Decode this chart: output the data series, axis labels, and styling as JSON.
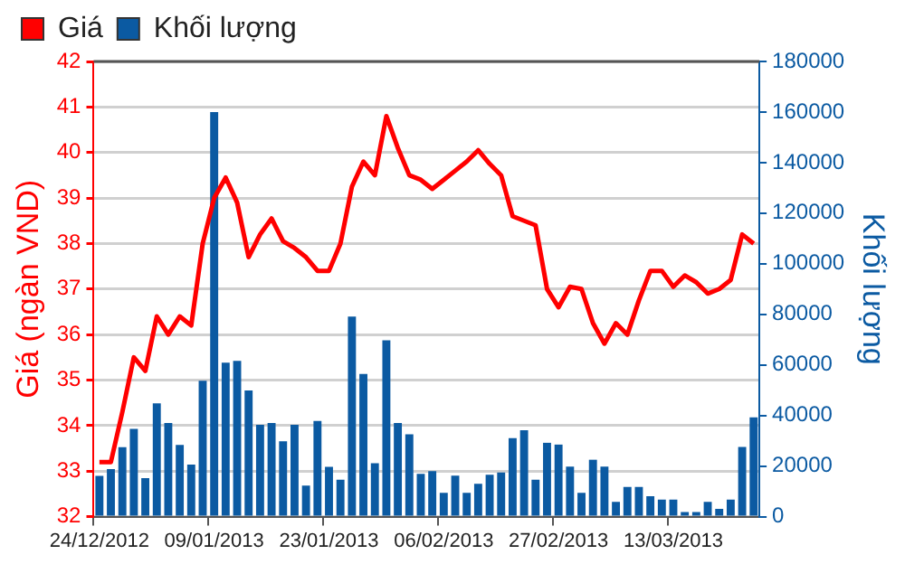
{
  "chart_data": {
    "type": "bar",
    "categories": [
      "24/12/2012",
      null,
      null,
      null,
      null,
      null,
      null,
      null,
      null,
      null,
      "09/01/2013",
      null,
      null,
      null,
      null,
      null,
      null,
      null,
      null,
      null,
      "23/01/2013",
      null,
      null,
      null,
      null,
      null,
      null,
      null,
      null,
      null,
      "06/02/2013",
      null,
      null,
      null,
      null,
      null,
      null,
      null,
      null,
      null,
      "27/02/2013",
      null,
      null,
      null,
      null,
      null,
      null,
      null,
      null,
      null,
      "13/03/2013",
      null,
      null,
      null,
      null,
      null,
      null,
      null
    ],
    "series": [
      {
        "name": "Giá",
        "type": "line",
        "color": "#ff0000",
        "values": [
          33.2,
          33.2,
          34.3,
          35.5,
          35.2,
          36.4,
          36.0,
          36.4,
          36.2,
          38.0,
          39.0,
          39.45,
          38.9,
          37.7,
          38.2,
          38.55,
          38.05,
          37.9,
          37.7,
          37.4,
          37.4,
          38.0,
          39.25,
          39.8,
          39.5,
          40.8,
          40.1,
          39.5,
          39.4,
          39.2,
          39.4,
          39.6,
          39.8,
          40.05,
          39.75,
          39.5,
          38.6,
          38.5,
          38.4,
          37.0,
          36.6,
          37.05,
          37.0,
          36.25,
          35.8,
          36.25,
          36.0,
          36.75,
          37.4,
          37.4,
          37.05,
          37.3,
          37.15,
          36.9,
          37.0,
          37.2,
          38.2,
          38.0
        ]
      },
      {
        "name": "Khối lượng",
        "axis": "y2",
        "color": "#0b5aa2",
        "values": [
          16100,
          18800,
          27500,
          34700,
          15200,
          44800,
          37000,
          28400,
          20600,
          53700,
          160000,
          60900,
          61600,
          49900,
          36300,
          37000,
          29800,
          36300,
          12300,
          37800,
          19700,
          14600,
          79100,
          56400,
          21100,
          69700,
          37000,
          32600,
          16900,
          18000,
          9400,
          16200,
          9400,
          13000,
          16600,
          17500,
          31000,
          34200,
          14600,
          29200,
          28500,
          19800,
          9400,
          22500,
          19800,
          5800,
          11700,
          11700,
          8100,
          6700,
          6700,
          1800,
          1800,
          5800,
          3100,
          6700,
          27600,
          39300
        ]
      }
    ],
    "ylabel": "Giá (ngàn VND)",
    "y2label": "Khối lượng",
    "ylim": [
      32,
      42
    ],
    "yticks": [
      32,
      33,
      34,
      35,
      36,
      37,
      38,
      39,
      40,
      41,
      42
    ],
    "y2lim": [
      0,
      180000
    ],
    "y2ticks": [
      0,
      20000,
      40000,
      60000,
      80000,
      100000,
      120000,
      140000,
      160000,
      180000
    ],
    "grid": "y",
    "legend": "top left",
    "marker": "none",
    "line_style": "solid"
  }
}
